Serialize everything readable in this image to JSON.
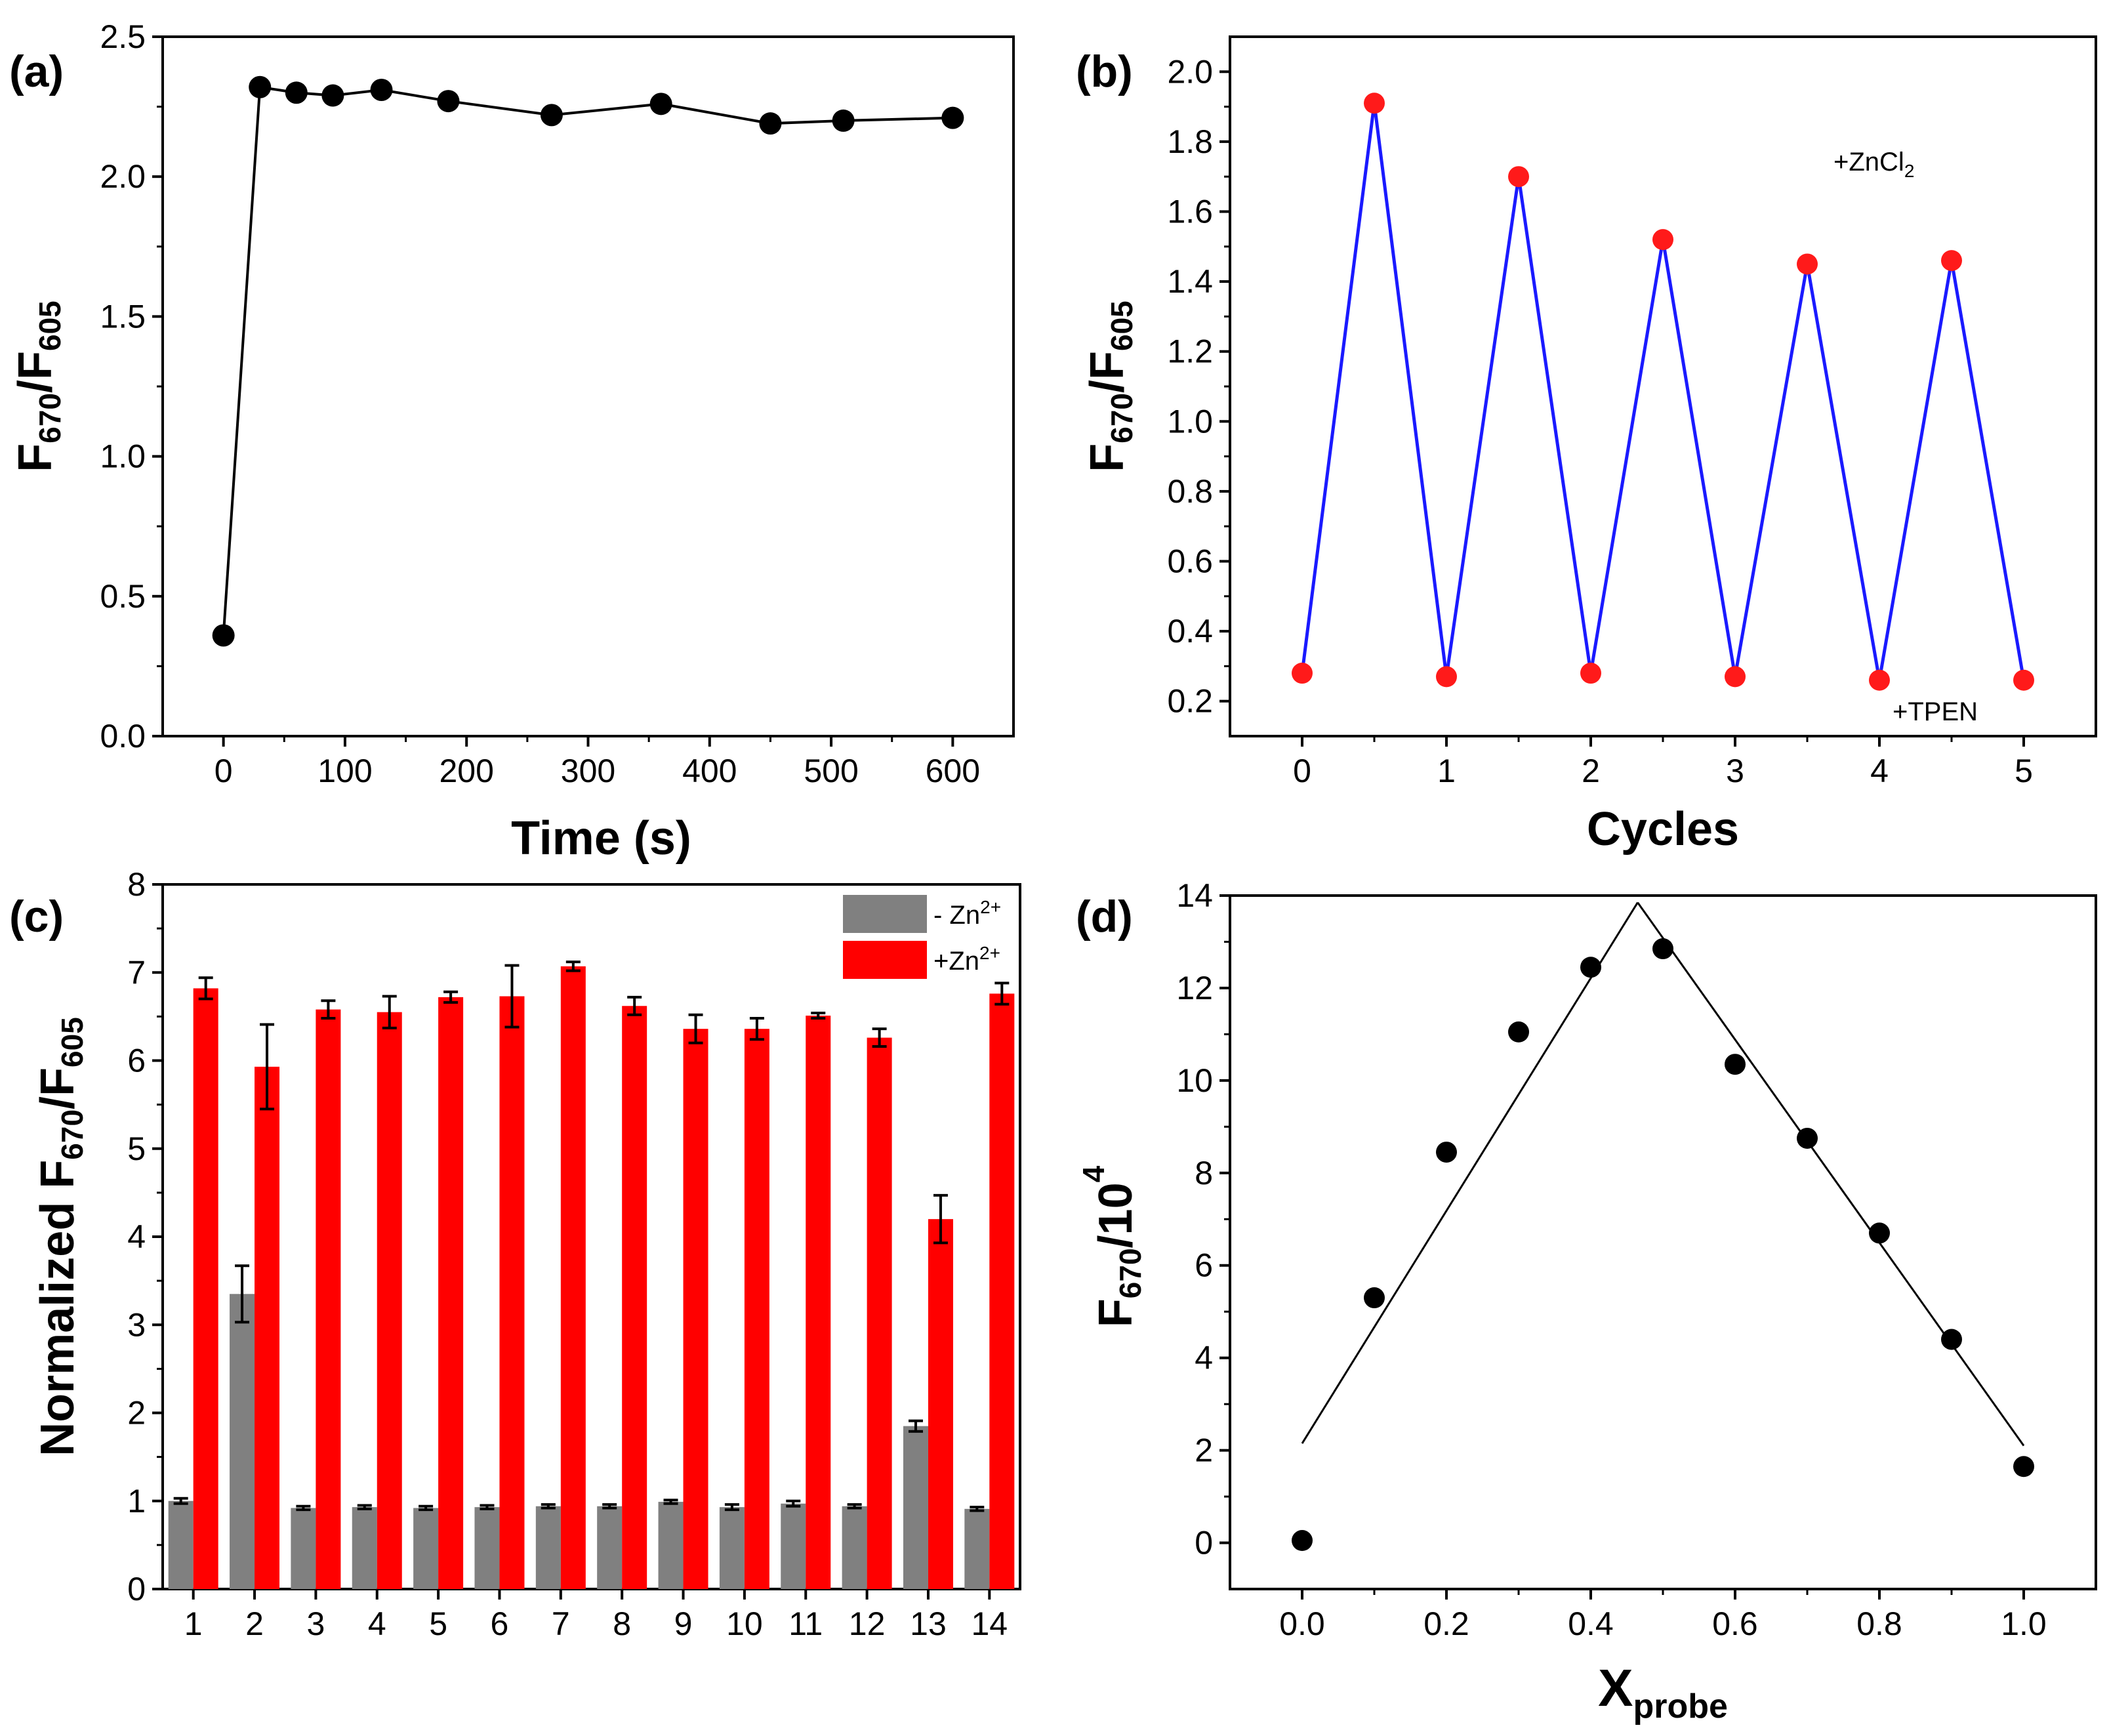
{
  "colors": {
    "axis": "#000000",
    "series_black": "#000000",
    "series_blue": "#1a1aff",
    "marker_red": "#ff1a1a",
    "bar_gray": "#808080",
    "bar_red": "#ff0000"
  },
  "chart_data": [
    {
      "panel": "(a)",
      "type": "line",
      "xlabel": "Time (s)",
      "ylabel": {
        "main": "F",
        "sub1": "670",
        "sep": "/F",
        "sub2": "605"
      },
      "xlim": [
        -50,
        650
      ],
      "ylim": [
        0,
        2.5
      ],
      "xticks": [
        0,
        100,
        200,
        300,
        400,
        500,
        600
      ],
      "xtick_labels": [
        "0",
        "100",
        "200",
        "300",
        "400",
        "500",
        "600"
      ],
      "yticks": [
        0,
        0.5,
        1.0,
        1.5,
        2.0,
        2.5
      ],
      "ytick_labels": [
        "0.0",
        "0.5",
        "1.0",
        "1.5",
        "2.0",
        "2.5"
      ],
      "series": [
        {
          "name": "F670/F605",
          "color": "#000000",
          "x": [
            0,
            30,
            60,
            90,
            130,
            185,
            270,
            360,
            450,
            510,
            600
          ],
          "y": [
            0.36,
            2.32,
            2.3,
            2.29,
            2.31,
            2.27,
            2.22,
            2.26,
            2.19,
            2.2,
            2.21
          ]
        }
      ]
    },
    {
      "panel": "(b)",
      "type": "line",
      "xlabel": "Cycles",
      "ylabel": {
        "main": "F",
        "sub1": "670",
        "sep": "/F",
        "sub2": "605"
      },
      "xlim": [
        -0.5,
        5.5
      ],
      "ylim": [
        0.1,
        2.1
      ],
      "xticks": [
        0,
        1,
        2,
        3,
        4,
        5
      ],
      "xtick_labels": [
        "0",
        "1",
        "2",
        "3",
        "4",
        "5"
      ],
      "yticks": [
        0.2,
        0.4,
        0.6,
        0.8,
        1.0,
        1.2,
        1.4,
        1.6,
        1.8,
        2.0
      ],
      "ytick_labels": [
        "0.2",
        "0.4",
        "0.6",
        "0.8",
        "1.0",
        "1.2",
        "1.4",
        "1.6",
        "1.8",
        "2.0"
      ],
      "series": [
        {
          "name": "F670/F605",
          "line_color": "#1a1aff",
          "marker_color": "#ff1a1a",
          "x": [
            0,
            0.5,
            1,
            1.5,
            2,
            2.5,
            3,
            3.5,
            4,
            4.5,
            5
          ],
          "y": [
            0.28,
            1.91,
            0.27,
            1.7,
            0.28,
            1.52,
            0.27,
            1.45,
            0.26,
            1.46,
            0.26
          ]
        }
      ],
      "annotations": {
        "zn": {
          "main": "+ZnCl",
          "sub": "2"
        },
        "tpen": "+TPEN"
      }
    },
    {
      "panel": "(c)",
      "type": "bar",
      "xlabel": "",
      "ylabel": {
        "main": "Normalized F",
        "sub1": "670",
        "sep": "/F",
        "sub2": "605"
      },
      "ylim": [
        0,
        8
      ],
      "yticks": [
        0,
        1,
        2,
        3,
        4,
        5,
        6,
        7,
        8
      ],
      "ytick_labels": [
        "0",
        "1",
        "2",
        "3",
        "4",
        "5",
        "6",
        "7",
        "8"
      ],
      "categories": [
        "1",
        "2",
        "3",
        "4",
        "5",
        "6",
        "7",
        "8",
        "9",
        "10",
        "11",
        "12",
        "13",
        "14"
      ],
      "series": [
        {
          "name": "- Zn2+",
          "legend": {
            "main": "- Zn",
            "sup": "2+"
          },
          "color": "#808080",
          "values": [
            1.0,
            3.35,
            0.92,
            0.93,
            0.92,
            0.93,
            0.94,
            0.94,
            0.99,
            0.93,
            0.97,
            0.94,
            1.85,
            0.91
          ],
          "errors": [
            0.03,
            0.32,
            0.02,
            0.02,
            0.02,
            0.02,
            0.02,
            0.02,
            0.02,
            0.03,
            0.03,
            0.02,
            0.06,
            0.02
          ]
        },
        {
          "name": "+Zn2+",
          "legend": {
            "main": "+Zn",
            "sup": "2+"
          },
          "color": "#ff0000",
          "values": [
            6.82,
            5.93,
            6.58,
            6.55,
            6.72,
            6.73,
            7.07,
            6.62,
            6.36,
            6.36,
            6.51,
            6.26,
            4.2,
            6.76
          ],
          "errors": [
            0.12,
            0.48,
            0.1,
            0.18,
            0.06,
            0.35,
            0.05,
            0.1,
            0.16,
            0.12,
            0.03,
            0.1,
            0.27,
            0.12
          ]
        }
      ]
    },
    {
      "panel": "(d)",
      "type": "scatter",
      "xlabel": {
        "main": "X",
        "sub": "probe"
      },
      "ylabel": {
        "main": "F",
        "sub1": "670",
        "sep": "/10",
        "sup": "4"
      },
      "xlim": [
        -0.1,
        1.1
      ],
      "ylim": [
        -1,
        14
      ],
      "xticks": [
        0,
        0.2,
        0.4,
        0.6,
        0.8,
        1.0
      ],
      "xtick_labels": [
        "0.0",
        "0.2",
        "0.4",
        "0.6",
        "0.8",
        "1.0"
      ],
      "yticks": [
        0,
        2,
        4,
        6,
        8,
        10,
        12,
        14
      ],
      "ytick_labels": [
        "0",
        "2",
        "4",
        "6",
        "8",
        "10",
        "12",
        "14"
      ],
      "series": [
        {
          "name": "F670/10^4",
          "color": "#000000",
          "x": [
            0.0,
            0.1,
            0.2,
            0.3,
            0.4,
            0.5,
            0.6,
            0.7,
            0.8,
            0.9,
            1.0
          ],
          "y": [
            0.05,
            5.3,
            8.45,
            11.05,
            12.45,
            12.85,
            10.35,
            8.75,
            6.7,
            4.4,
            1.65
          ]
        }
      ],
      "fit_lines": [
        {
          "x": [
            0.0,
            0.465
          ],
          "y": [
            2.15,
            13.85
          ]
        },
        {
          "x": [
            0.465,
            1.0
          ],
          "y": [
            13.85,
            2.1
          ]
        }
      ]
    }
  ]
}
